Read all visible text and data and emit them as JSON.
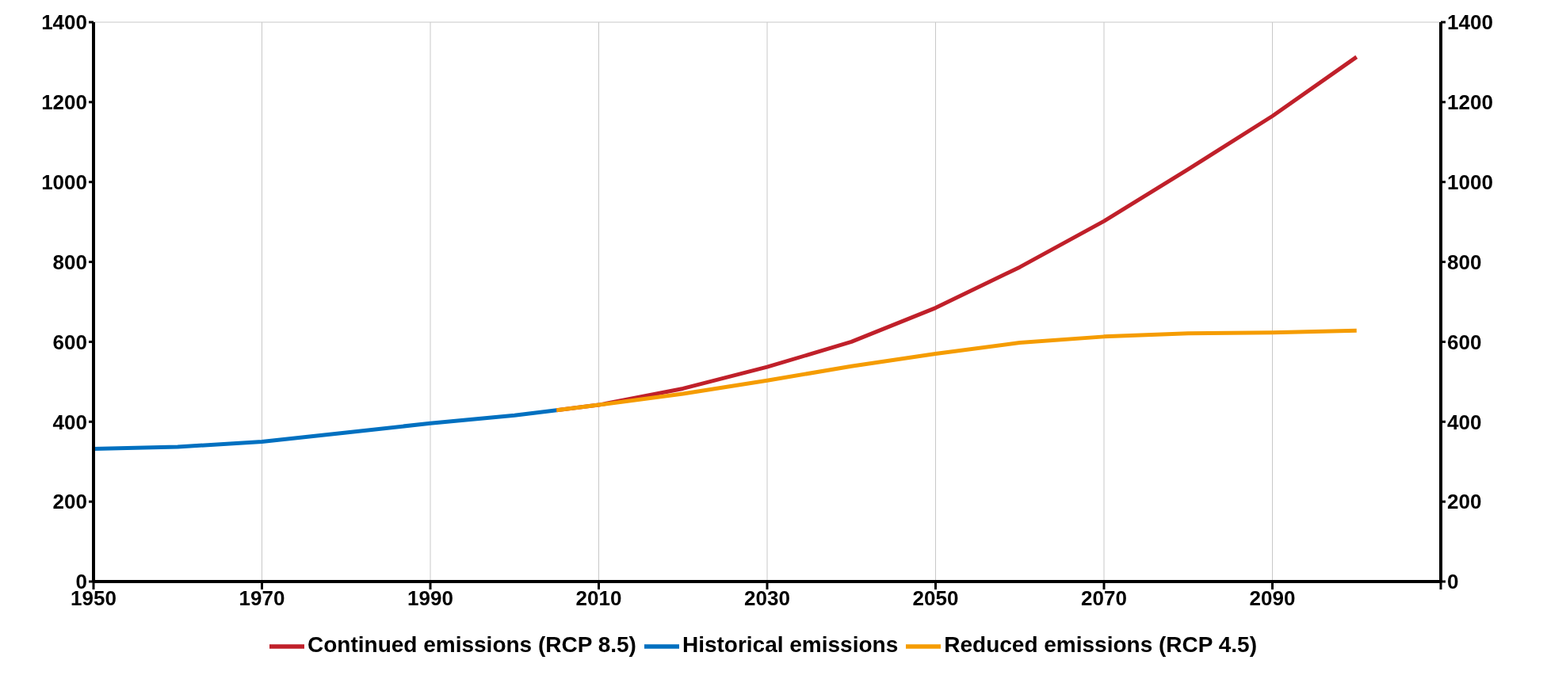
{
  "chart_data": {
    "type": "line",
    "xlim": [
      1950,
      2110
    ],
    "xticks": [
      1950,
      1970,
      1990,
      2010,
      2030,
      2050,
      2070,
      2090,
      {
        "value": 2110,
        "label": null
      }
    ],
    "ylim": [
      0,
      1400
    ],
    "yticks": [
      0,
      200,
      400,
      600,
      800,
      1000,
      1200,
      1400
    ],
    "y2lim": [
      0,
      1400
    ],
    "y2ticks": [
      0,
      200,
      400,
      600,
      800,
      1000,
      1200,
      1400
    ],
    "grid": true,
    "legend": "bottom",
    "marker": "none",
    "line_style": "solid",
    "series": [
      {
        "name": "Historical emissions",
        "color": "#0070c0",
        "x": [
          1950,
          1960,
          1970,
          1980,
          1990,
          2000,
          2005
        ],
        "values": [
          332,
          337,
          350,
          373,
          396,
          416,
          429
        ]
      },
      {
        "name": "Continued emissions (RCP 8.5)",
        "color": "#c0202a",
        "x": [
          2005,
          2010,
          2020,
          2030,
          2040,
          2050,
          2060,
          2070,
          2080,
          2090,
          2100
        ],
        "values": [
          429,
          442,
          483,
          537,
          600,
          685,
          787,
          902,
          1032,
          1165,
          1313
        ]
      },
      {
        "name": "Reduced emissions (RCP 4.5)",
        "color": "#f59c00",
        "x": [
          2005,
          2010,
          2020,
          2030,
          2040,
          2050,
          2060,
          2070,
          2080,
          2090,
          2100
        ],
        "values": [
          429,
          442,
          470,
          503,
          539,
          570,
          598,
          613,
          621,
          623,
          628
        ]
      }
    ]
  }
}
